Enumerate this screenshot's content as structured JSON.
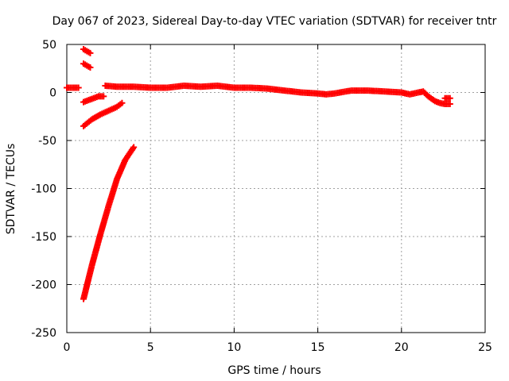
{
  "chart_data": {
    "type": "scatter",
    "title": "Day 067 of 2023, Sidereal Day-to-day VTEC variation (SDTVAR) for receiver tntr",
    "xlabel": "GPS time / hours",
    "ylabel": "SDTVAR / TECUs",
    "xlim": [
      0,
      25
    ],
    "ylim": [
      -250,
      50
    ],
    "xticks": [
      0,
      5,
      10,
      15,
      20,
      25
    ],
    "yticks": [
      -250,
      -200,
      -150,
      -100,
      -50,
      0,
      50
    ],
    "grid": true,
    "marker_color": "#ff0000",
    "series": [
      {
        "x": [
          0.0,
          0.2,
          0.4,
          0.6,
          0.7
        ],
        "y": [
          5,
          5,
          5,
          5,
          5
        ]
      },
      {
        "x": [
          1.0,
          1.2,
          1.4
        ],
        "y": [
          45,
          43,
          41
        ]
      },
      {
        "x": [
          1.0,
          1.2,
          1.4
        ],
        "y": [
          30,
          28,
          26
        ]
      },
      {
        "x": [
          1.0,
          1.3,
          1.6,
          1.9,
          2.2
        ],
        "y": [
          -10,
          -8,
          -6,
          -4,
          -4
        ]
      },
      {
        "x": [
          1.0,
          1.5,
          2.0,
          2.5,
          3.0,
          3.3
        ],
        "y": [
          -35,
          -28,
          -23,
          -19,
          -15,
          -11
        ]
      },
      {
        "x": [
          1.0,
          1.5,
          2.0,
          2.5,
          3.0,
          3.5,
          4.0
        ],
        "y": [
          -215,
          -180,
          -148,
          -118,
          -90,
          -70,
          -57
        ]
      },
      {
        "x": [
          2.3,
          3.0,
          4.0,
          5.0,
          6.0,
          7.0,
          8.0,
          9.0,
          10.0,
          11.0,
          12.0,
          13.0,
          14.0,
          15.0,
          15.5,
          16.0,
          17.0,
          18.0,
          19.0,
          20.0,
          20.5,
          21.0,
          21.3,
          21.6,
          22.0,
          22.3,
          22.6,
          22.9
        ],
        "y": [
          7,
          6,
          6,
          5,
          5,
          7,
          6,
          7,
          5,
          5,
          4,
          2,
          0,
          -1,
          -2,
          -1,
          2,
          2,
          1,
          0,
          -2,
          0,
          1,
          -4,
          -9,
          -11,
          -12,
          -12
        ]
      },
      {
        "x": [
          22.6,
          22.9
        ],
        "y": [
          -6,
          -6
        ]
      }
    ]
  }
}
